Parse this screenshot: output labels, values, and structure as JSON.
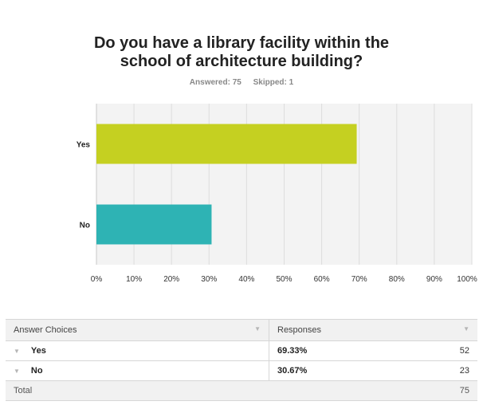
{
  "question": {
    "line1": "Do you have a library facility within the",
    "line2": "school of architecture building?"
  },
  "stats": {
    "answered": "Answered: 75",
    "skipped": "Skipped: 1"
  },
  "chart_data": {
    "type": "bar",
    "orientation": "horizontal",
    "categories": [
      "Yes",
      "No"
    ],
    "values": [
      69.33,
      30.67
    ],
    "colors": [
      "#c5d021",
      "#2eb3b4"
    ],
    "xlim": [
      0,
      100
    ],
    "xticks": [
      "0%",
      "10%",
      "20%",
      "30%",
      "40%",
      "50%",
      "60%",
      "70%",
      "80%",
      "90%",
      "100%"
    ],
    "grid": true
  },
  "table": {
    "header": {
      "choices": "Answer Choices",
      "responses": "Responses"
    },
    "rows": [
      {
        "label": "Yes",
        "percent": "69.33%",
        "count": "52"
      },
      {
        "label": "No",
        "percent": "30.67%",
        "count": "23"
      }
    ],
    "total": {
      "label": "Total",
      "count": "75"
    }
  }
}
